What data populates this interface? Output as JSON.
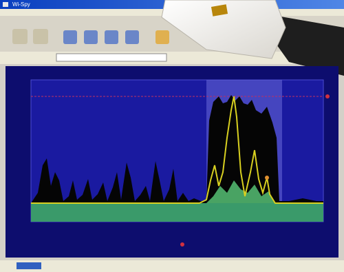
{
  "window": {
    "title": "Wi-Spy"
  }
}
